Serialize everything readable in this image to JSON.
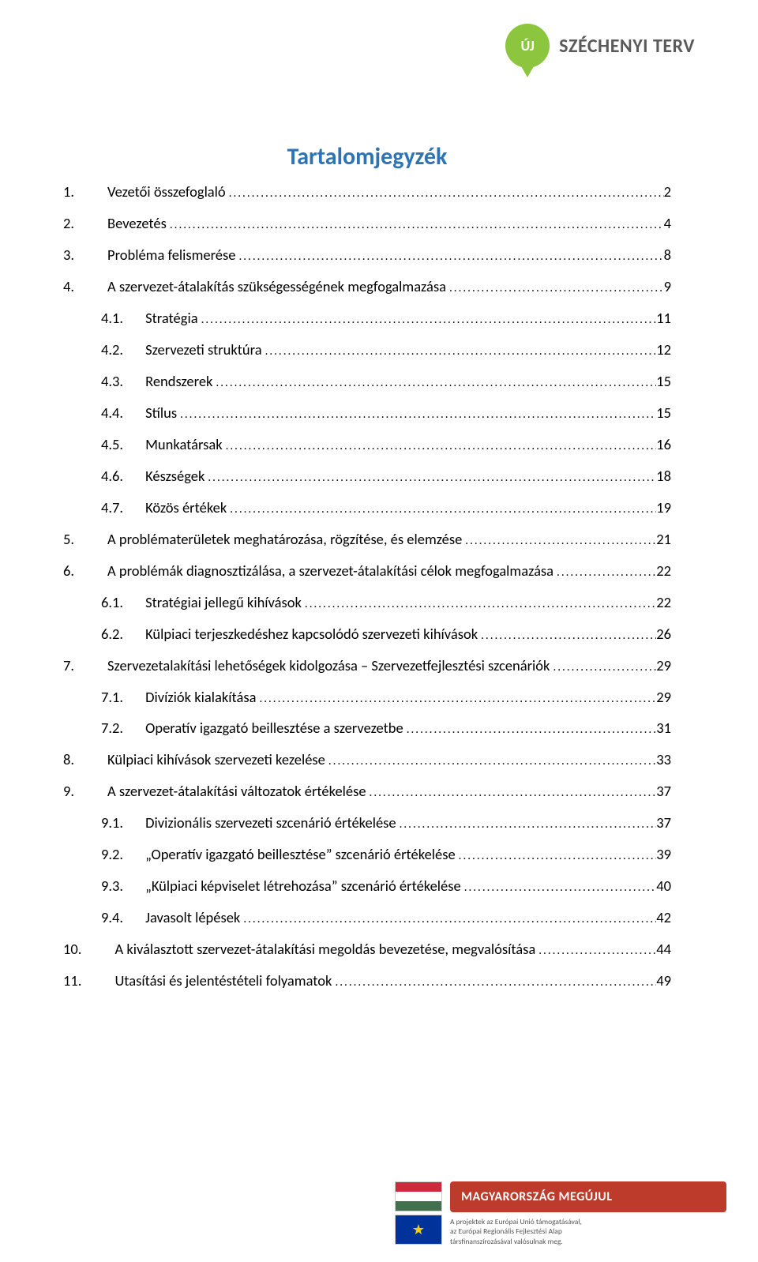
{
  "header": {
    "badge_text": "ÚJ",
    "brand": "SZÉCHENYI TERV"
  },
  "title": "Tartalomjegyzék",
  "colors": {
    "title": "#2e74b5",
    "accent_green": "#8cc63f",
    "banner_red": "#bd3b2b"
  },
  "toc": [
    {
      "level": 0,
      "num": "1.",
      "label": "Vezetői összefoglaló",
      "page": "2"
    },
    {
      "level": 0,
      "num": "2.",
      "label": "Bevezetés",
      "page": "4"
    },
    {
      "level": 0,
      "num": "3.",
      "label": "Probléma felismerése",
      "page": "8"
    },
    {
      "level": 0,
      "num": "4.",
      "label": "A szervezet-átalakítás szükségességének megfogalmazása",
      "page": "9"
    },
    {
      "level": 1,
      "num": "4.1.",
      "label": "Stratégia",
      "page": "11"
    },
    {
      "level": 1,
      "num": "4.2.",
      "label": "Szervezeti struktúra",
      "page": "12"
    },
    {
      "level": 1,
      "num": "4.3.",
      "label": "Rendszerek",
      "page": "15"
    },
    {
      "level": 1,
      "num": "4.4.",
      "label": "Stílus",
      "page": "15"
    },
    {
      "level": 1,
      "num": "4.5.",
      "label": "Munkatársak",
      "page": "16"
    },
    {
      "level": 1,
      "num": "4.6.",
      "label": "Készségek",
      "page": "18"
    },
    {
      "level": 1,
      "num": "4.7.",
      "label": "Közös értékek",
      "page": "19"
    },
    {
      "level": 0,
      "num": "5.",
      "label": "A problématerületek meghatározása, rögzítése, és elemzése",
      "page": "21"
    },
    {
      "level": 0,
      "num": "6.",
      "label": "A problémák diagnosztizálása, a szervezet-átalakítási célok megfogalmazása",
      "page": "22"
    },
    {
      "level": 1,
      "num": "6.1.",
      "label": "Stratégiai jellegű kihívások",
      "page": "22"
    },
    {
      "level": 1,
      "num": "6.2.",
      "label": "Külpiaci terjeszkedéshez kapcsolódó szervezeti kihívások",
      "page": "26"
    },
    {
      "level": 0,
      "num": "7.",
      "label": "Szervezetalakítási lehetőségek kidolgozása – Szervezetfejlesztési szcenáriók",
      "page": "29"
    },
    {
      "level": 1,
      "num": "7.1.",
      "label": "Divíziók kialakítása",
      "page": "29"
    },
    {
      "level": 1,
      "num": "7.2.",
      "label": "Operatív igazgató beillesztése a szervezetbe",
      "page": "31"
    },
    {
      "level": 0,
      "num": "8.",
      "label": "Külpiaci kihívások szervezeti kezelése",
      "page": "33"
    },
    {
      "level": 0,
      "num": "9.",
      "label": "A szervezet-átalakítási változatok értékelése",
      "page": "37"
    },
    {
      "level": 1,
      "num": "9.1.",
      "label": "Divizionális szervezeti szcenárió értékelése",
      "page": "37"
    },
    {
      "level": 1,
      "num": "9.2.",
      "label": "„Operatív igazgató beillesztése” szcenárió értékelése",
      "page": "39"
    },
    {
      "level": 1,
      "num": "9.3.",
      "label": "„Külpiaci képviselet létrehozása” szcenárió értékelése",
      "page": "40"
    },
    {
      "level": 1,
      "num": "9.4.",
      "label": "Javasolt lépések",
      "page": "42"
    },
    {
      "level": 0,
      "num": "10.",
      "label": "A kiválasztott szervezet-átalakítási megoldás bevezetése, megvalósítása",
      "page": "44"
    },
    {
      "level": 0,
      "num": "11.",
      "label": "Utasítási és jelentéstételi folyamatok",
      "page": "49"
    }
  ],
  "footer": {
    "banner": "MAGYARORSZÁG MEGÚJUL",
    "sub1": "A projektek az Európai Unió támogatásával,",
    "sub2": "az Európai Regionális Fejlesztési Alap",
    "sub3": "társfinanszírozásával valósulnak meg."
  }
}
